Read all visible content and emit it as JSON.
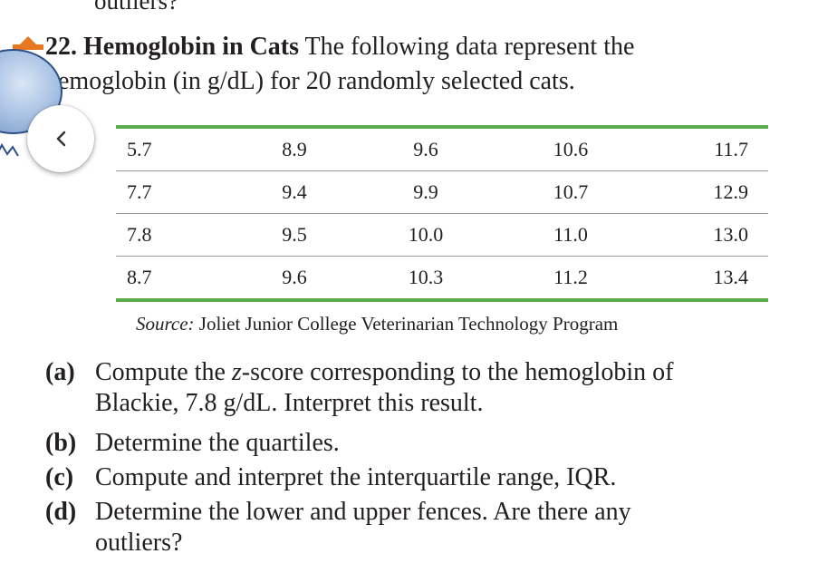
{
  "previous_tail": "outliers?",
  "problem": {
    "number": "22.",
    "title": "Hemoglobin in Cats",
    "intro_line1": "The following data represent the",
    "intro_line2": "hemoglobin (in g/dL) for 20 randomly selected cats."
  },
  "back_button": {
    "icon": "chevron-left-icon",
    "glyph": "<"
  },
  "table": {
    "rows": [
      [
        "5.7",
        "8.9",
        "9.6",
        "10.6",
        "11.7"
      ],
      [
        "7.7",
        "9.4",
        "9.9",
        "10.7",
        "12.9"
      ],
      [
        "7.8",
        "9.5",
        "10.0",
        "11.0",
        "13.0"
      ],
      [
        "8.7",
        "9.6",
        "10.3",
        "11.2",
        "13.4"
      ]
    ]
  },
  "source": {
    "label": "Source:",
    "text": "Joliet Junior College Veterinarian Technology Program"
  },
  "parts": {
    "a": {
      "label": "(a)",
      "line1_pre": "Compute the ",
      "line1_var": "z",
      "line1_post": "-score corresponding to the hemoglobin of",
      "line2": "Blackie, 7.8 g/dL. Interpret this result."
    },
    "b": {
      "label": "(b)",
      "text": "Determine the quartiles."
    },
    "c": {
      "label": "(c)",
      "text": "Compute and interpret the interquartile range, IQR."
    },
    "d": {
      "label": "(d)",
      "line1": "Determine the lower and upper fences. Are there any",
      "line2": "outliers?"
    }
  },
  "colors": {
    "rule_green": "#5aa94b",
    "flag_orange": "#e87722",
    "text": "#231f20"
  }
}
